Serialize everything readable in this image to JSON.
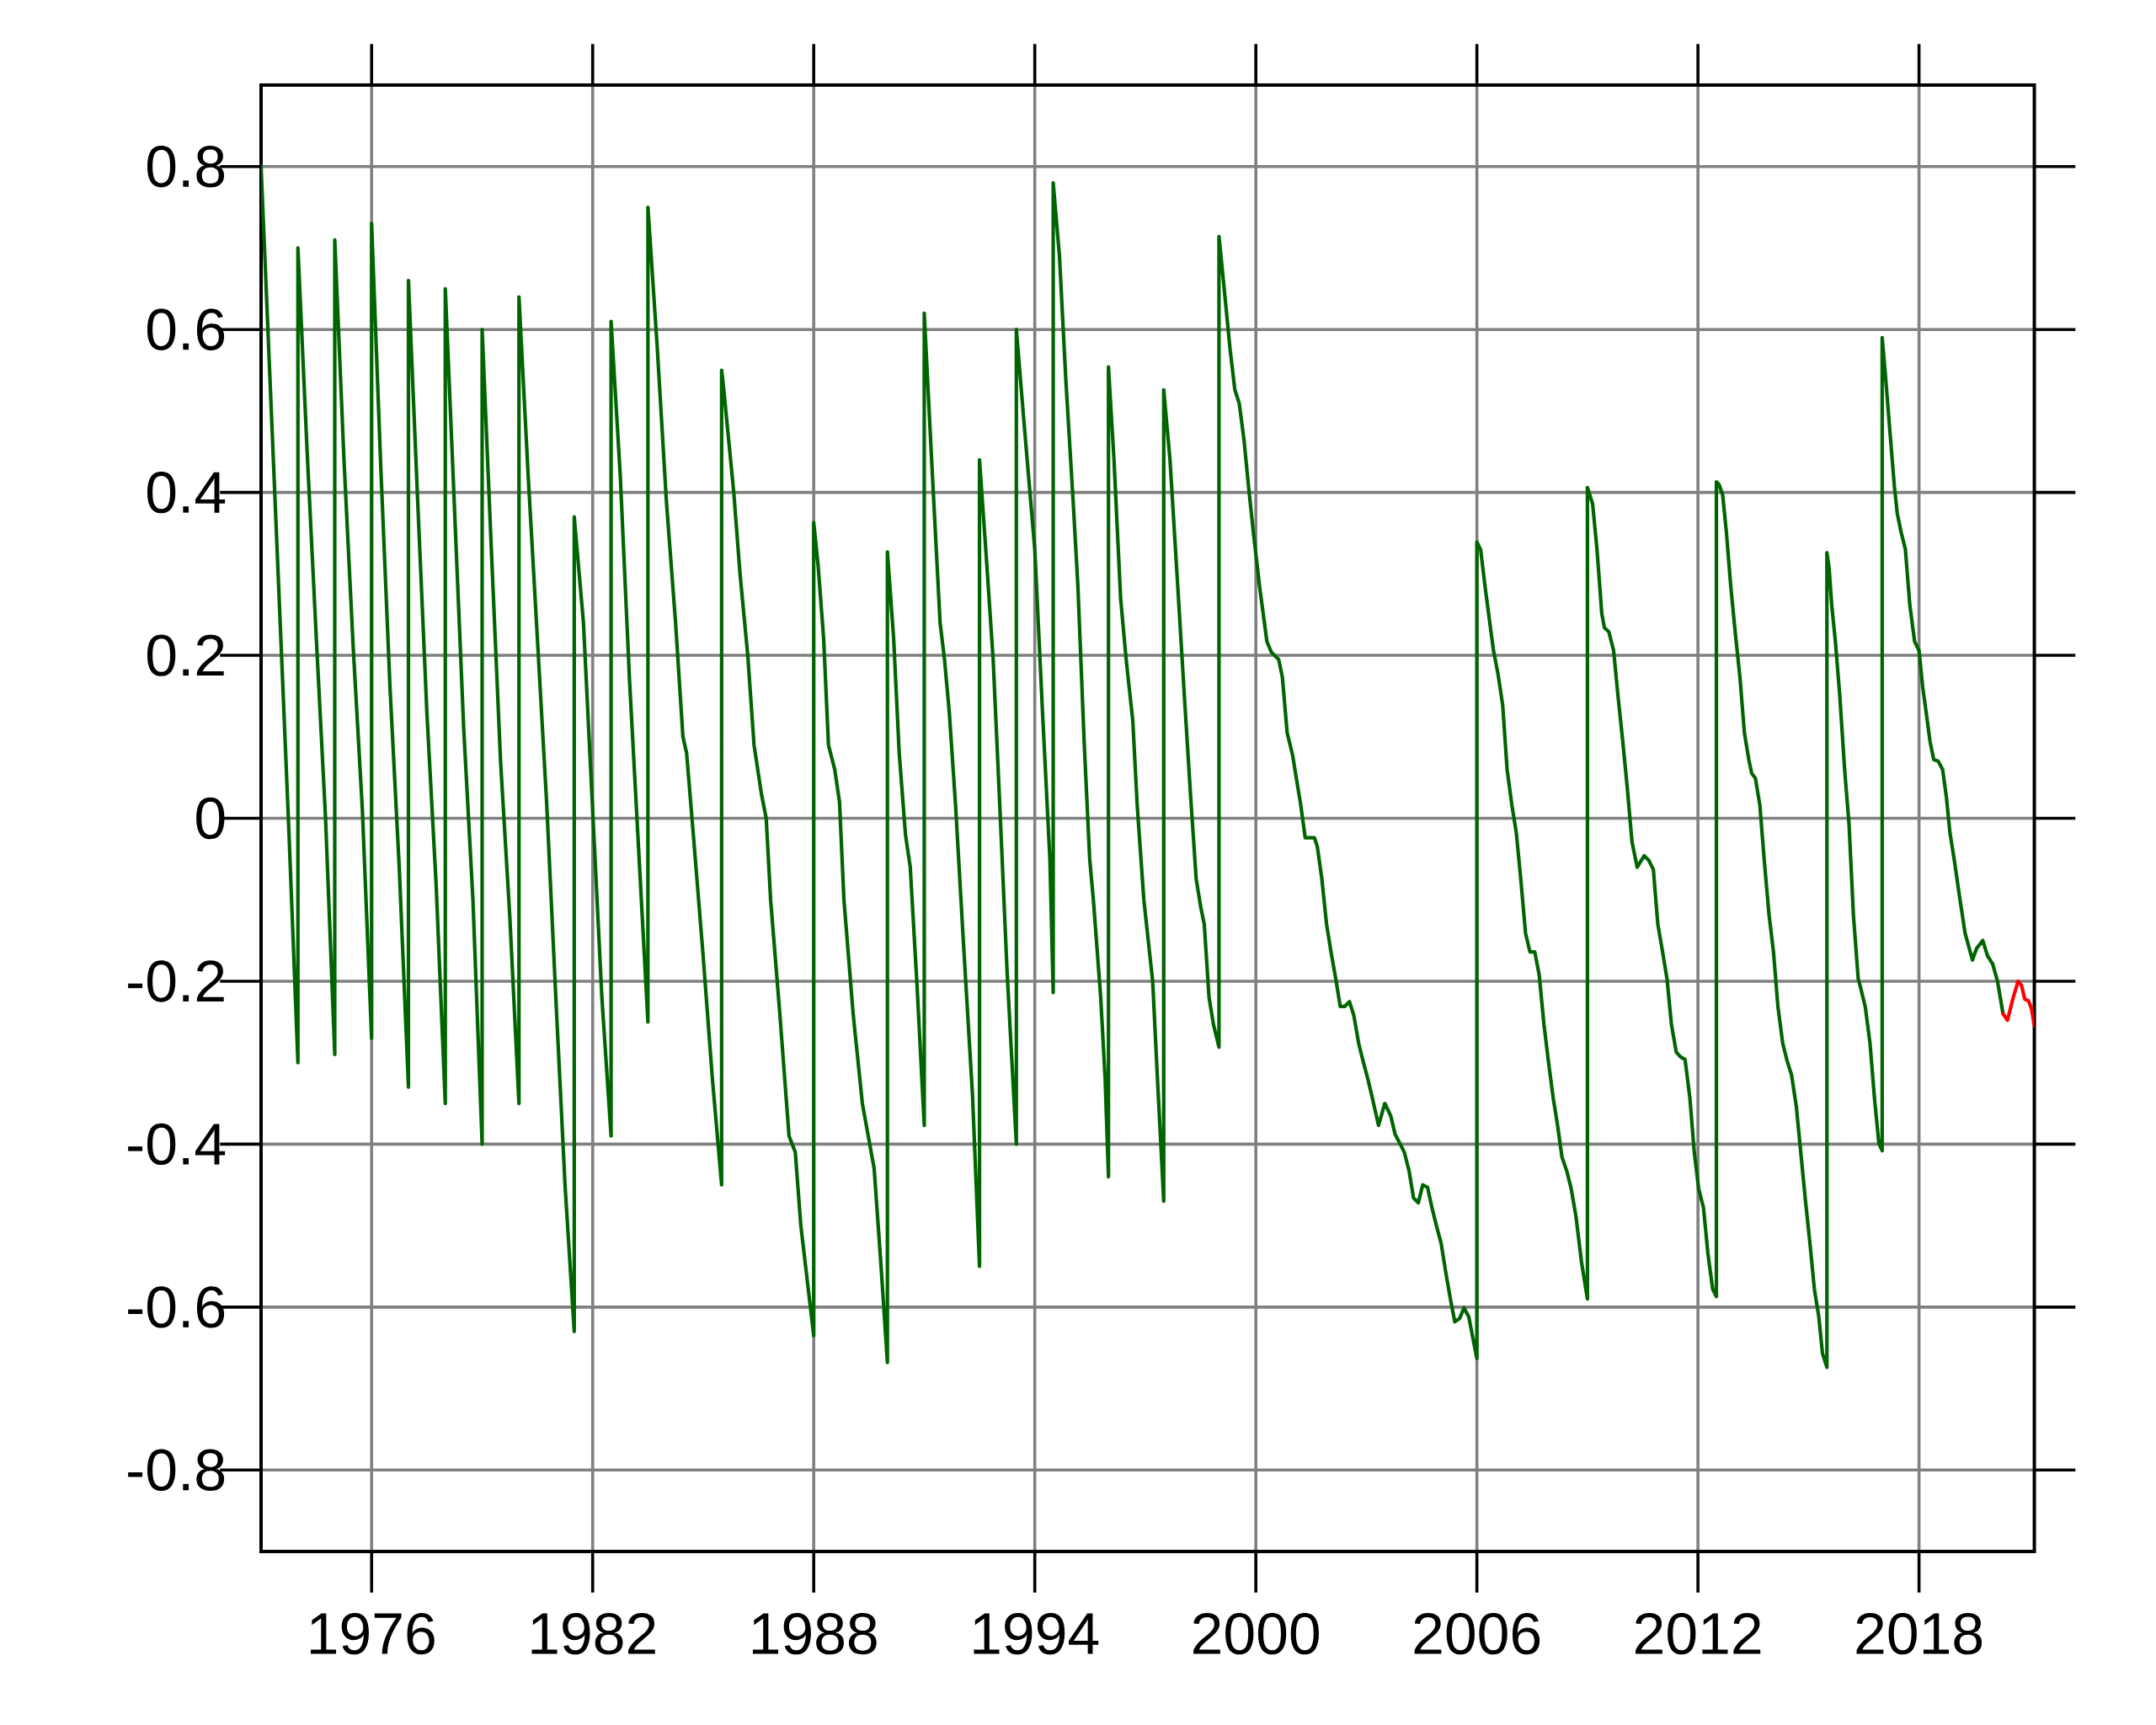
{
  "chart_data": {
    "type": "line",
    "xlim": [
      1973,
      2021.13
    ],
    "ylim": [
      -0.9,
      0.9
    ],
    "xticks": [
      1976,
      1982,
      1988,
      1994,
      2000,
      2006,
      2012,
      2018
    ],
    "yticks": [
      -0.8,
      -0.6,
      -0.4,
      -0.2,
      0,
      0.2,
      0.4,
      0.6,
      0.8
    ],
    "grid": true,
    "series": [
      {
        "color": "#006400",
        "x": [
          1973.0,
          1973.25,
          1973.5,
          1973.75,
          1974.0,
          1974.0,
          1974.25,
          1974.5,
          1974.75,
          1975.0,
          1975.0,
          1975.25,
          1975.5,
          1975.75,
          1976.0,
          1976.0,
          1976.25,
          1976.5,
          1976.75,
          1977.0,
          1977.0,
          1977.25,
          1977.5,
          1977.75,
          1978.0,
          1978.0,
          1978.25,
          1978.5,
          1978.75,
          1979.0,
          1979.0,
          1979.25,
          1979.5,
          1979.75,
          1980.0,
          1980.0,
          1980.25,
          1980.5,
          1980.75,
          1981.0,
          1981.25,
          1981.5,
          1981.5,
          1981.75,
          1982.0,
          1982.25,
          1982.5,
          1982.5,
          1982.75,
          1983.0,
          1983.25,
          1983.5,
          1983.5,
          1983.75,
          1984.0,
          1984.25,
          1984.45,
          1984.55,
          1984.75,
          1985.0,
          1985.25,
          1985.5,
          1985.5,
          1985.55,
          1985.83,
          1986.0,
          1986.21,
          1986.38,
          1986.58,
          1986.71,
          1986.83,
          1987.08,
          1987.33,
          1987.5,
          1987.65,
          1988.0,
          1988.0,
          1988.12,
          1988.27,
          1988.4,
          1988.57,
          1988.7,
          1988.82,
          1989.07,
          1989.32,
          1989.44,
          1989.64,
          1989.82,
          1990.0,
          1990.0,
          1990.17,
          1990.32,
          1990.49,
          1990.62,
          1990.81,
          1991.0,
          1991.0,
          1991.2,
          1991.43,
          1991.55,
          1991.68,
          1991.85,
          1992.06,
          1992.31,
          1992.5,
          1992.5,
          1992.7,
          1992.87,
          1993.05,
          1993.25,
          1993.5,
          1993.5,
          1993.7,
          1994.0,
          1994.21,
          1994.41,
          1994.5,
          1994.5,
          1994.67,
          1994.84,
          1995.04,
          1995.17,
          1995.34,
          1995.49,
          1995.59,
          1995.79,
          1995.91,
          1996.0,
          1996.0,
          1996.15,
          1996.33,
          1996.48,
          1996.66,
          1996.78,
          1996.96,
          1997.2,
          1997.33,
          1997.5,
          1997.5,
          1997.67,
          1997.88,
          1998.06,
          1998.23,
          1998.38,
          1998.5,
          1998.6,
          1998.73,
          1998.85,
          1999.0,
          1999.0,
          1999.13,
          1999.3,
          1999.43,
          1999.55,
          1999.68,
          1999.8,
          1999.93,
          2000.1,
          2000.3,
          2000.42,
          2000.62,
          2000.72,
          2000.85,
          2001.0,
          2001.1,
          2001.22,
          2001.34,
          2001.59,
          2001.67,
          2001.79,
          2001.92,
          2002.04,
          2002.17,
          2002.29,
          2002.41,
          2002.54,
          2002.66,
          2002.79,
          2002.91,
          2003.04,
          2003.16,
          2003.33,
          2003.5,
          2003.66,
          2003.78,
          2003.91,
          2004.03,
          2004.16,
          2004.28,
          2004.41,
          2004.53,
          2004.66,
          2004.78,
          2004.9,
          2005.03,
          2005.15,
          2005.28,
          2005.4,
          2005.53,
          2005.65,
          2005.78,
          2005.9,
          2006.0,
          2006.0,
          2006.1,
          2006.22,
          2006.35,
          2006.45,
          2006.57,
          2006.7,
          2006.82,
          2006.95,
          2007.07,
          2007.19,
          2007.32,
          2007.44,
          2007.57,
          2007.69,
          2007.82,
          2007.94,
          2008.07,
          2008.19,
          2008.31,
          2008.44,
          2008.56,
          2008.69,
          2008.84,
          2009.0,
          2009.0,
          2009.14,
          2009.26,
          2009.39,
          2009.46,
          2009.58,
          2009.71,
          2009.83,
          2009.96,
          2010.08,
          2010.21,
          2010.35,
          2010.54,
          2010.67,
          2010.79,
          2010.91,
          2011.04,
          2011.16,
          2011.28,
          2011.41,
          2011.53,
          2011.65,
          2011.78,
          2011.9,
          2012.02,
          2012.15,
          2012.27,
          2012.4,
          2012.5,
          2012.5,
          2012.57,
          2012.67,
          2012.77,
          2012.89,
          2013.01,
          2013.14,
          2013.26,
          2013.38,
          2013.46,
          2013.56,
          2013.68,
          2013.8,
          2013.93,
          2014.05,
          2014.17,
          2014.3,
          2014.42,
          2014.54,
          2014.67,
          2014.79,
          2014.91,
          2015.04,
          2015.16,
          2015.28,
          2015.38,
          2015.5,
          2015.5,
          2015.56,
          2015.63,
          2015.73,
          2015.85,
          2015.98,
          2016.1,
          2016.22,
          2016.35,
          2016.42,
          2016.54,
          2016.67,
          2016.79,
          2016.91,
          2017.0,
          2017.0,
          2017.09,
          2017.21,
          2017.33,
          2017.41,
          2017.51,
          2017.63,
          2017.75,
          2017.88,
          2018.0,
          2018.1,
          2018.2,
          2018.3,
          2018.4,
          2018.52,
          2018.64,
          2018.74,
          2018.84,
          2018.96,
          2019.08,
          2019.25,
          2019.45,
          2019.56,
          2019.73,
          2019.86,
          2020.0,
          2020.13,
          2020.28
        ],
        "values": [
          0.8,
          0.53,
          0.26,
          -0.01,
          -0.3,
          0.7,
          0.45,
          0.22,
          0.0,
          -0.29,
          0.71,
          0.44,
          0.21,
          0.01,
          -0.27,
          0.73,
          0.43,
          0.16,
          -0.06,
          -0.33,
          0.66,
          0.39,
          0.13,
          -0.08,
          -0.35,
          0.65,
          0.38,
          0.11,
          -0.1,
          -0.4,
          0.6,
          0.33,
          0.07,
          -0.12,
          -0.35,
          0.64,
          0.42,
          0.22,
          0.02,
          -0.22,
          -0.45,
          -0.63,
          0.37,
          0.24,
          0.01,
          -0.22,
          -0.39,
          0.61,
          0.42,
          0.17,
          -0.04,
          -0.25,
          0.75,
          0.58,
          0.39,
          0.24,
          0.1,
          0.08,
          -0.03,
          -0.17,
          -0.32,
          -0.45,
          0.55,
          0.53,
          0.4,
          0.3,
          0.2,
          0.09,
          0.03,
          0.0,
          -0.1,
          -0.24,
          -0.39,
          -0.41,
          -0.5,
          -0.635,
          0.363,
          0.31,
          0.22,
          0.09,
          0.06,
          0.02,
          -0.1,
          -0.24,
          -0.35,
          -0.38,
          -0.43,
          -0.545,
          -0.668,
          0.327,
          0.22,
          0.08,
          -0.02,
          -0.06,
          -0.21,
          -0.377,
          0.62,
          0.44,
          0.24,
          0.195,
          0.13,
          0.016,
          -0.15,
          -0.34,
          -0.55,
          0.44,
          0.31,
          0.195,
          0.016,
          -0.19,
          -0.4,
          0.6,
          0.49,
          0.33,
          0.13,
          -0.05,
          -0.214,
          0.78,
          0.69,
          0.54,
          0.39,
          0.285,
          0.094,
          -0.05,
          -0.1,
          -0.22,
          -0.32,
          -0.44,
          0.554,
          0.44,
          0.27,
          0.195,
          0.12,
          0.016,
          -0.1,
          -0.2,
          -0.32,
          -0.47,
          0.526,
          0.44,
          0.285,
          0.15,
          0.027,
          -0.074,
          -0.108,
          -0.13,
          -0.22,
          -0.253,
          -0.281,
          0.714,
          0.655,
          0.576,
          0.526,
          0.509,
          0.464,
          0.408,
          0.352,
          0.285,
          0.217,
          0.204,
          0.195,
          0.173,
          0.105,
          0.077,
          0.049,
          0.016,
          -0.024,
          -0.024,
          -0.035,
          -0.074,
          -0.13,
          -0.164,
          -0.197,
          -0.231,
          -0.231,
          -0.225,
          -0.242,
          -0.276,
          -0.298,
          -0.32,
          -0.343,
          -0.377,
          -0.35,
          -0.365,
          -0.388,
          -0.399,
          -0.41,
          -0.433,
          -0.466,
          -0.472,
          -0.45,
          -0.453,
          -0.478,
          -0.5,
          -0.522,
          -0.556,
          -0.59,
          -0.618,
          -0.614,
          -0.601,
          -0.612,
          -0.64,
          -0.663,
          0.339,
          0.33,
          0.285,
          0.24,
          0.206,
          0.178,
          0.139,
          0.06,
          0.016,
          -0.018,
          -0.074,
          -0.141,
          -0.164,
          -0.164,
          -0.192,
          -0.253,
          -0.298,
          -0.343,
          -0.377,
          -0.416,
          -0.433,
          -0.455,
          -0.489,
          -0.545,
          -0.59,
          0.406,
          0.386,
          0.33,
          0.251,
          0.234,
          0.229,
          0.206,
          0.15,
          0.094,
          0.038,
          -0.029,
          -0.06,
          -0.046,
          -0.052,
          -0.063,
          -0.13,
          -0.164,
          -0.197,
          -0.253,
          -0.287,
          -0.293,
          -0.296,
          -0.343,
          -0.41,
          -0.455,
          -0.478,
          -0.534,
          -0.578,
          -0.587,
          0.413,
          0.41,
          0.397,
          0.352,
          0.285,
          0.229,
          0.173,
          0.105,
          0.072,
          0.055,
          0.049,
          0.016,
          -0.052,
          -0.119,
          -0.164,
          -0.231,
          -0.276,
          -0.298,
          -0.315,
          -0.354,
          -0.41,
          -0.466,
          -0.522,
          -0.578,
          -0.612,
          -0.657,
          -0.674,
          0.326,
          0.307,
          0.262,
          0.217,
          0.15,
          0.06,
          -0.007,
          -0.119,
          -0.197,
          -0.209,
          -0.231,
          -0.276,
          -0.343,
          -0.399,
          -0.408,
          0.59,
          0.543,
          0.475,
          0.408,
          0.374,
          0.352,
          0.33,
          0.262,
          0.217,
          0.206,
          0.161,
          0.128,
          0.094,
          0.072,
          0.07,
          0.06,
          0.027,
          -0.018,
          -0.052,
          -0.09,
          -0.141,
          -0.174,
          -0.16,
          -0.15,
          -0.169,
          -0.179,
          -0.2,
          -0.24
        ]
      },
      {
        "color": "#ff0000",
        "x": [
          2020.28,
          2020.4,
          2020.55,
          2020.69,
          2020.78,
          2020.87,
          2020.97,
          2021.05,
          2021.13
        ],
        "values": [
          -0.24,
          -0.248,
          -0.221,
          -0.2,
          -0.205,
          -0.222,
          -0.224,
          -0.233,
          -0.255
        ]
      }
    ]
  }
}
